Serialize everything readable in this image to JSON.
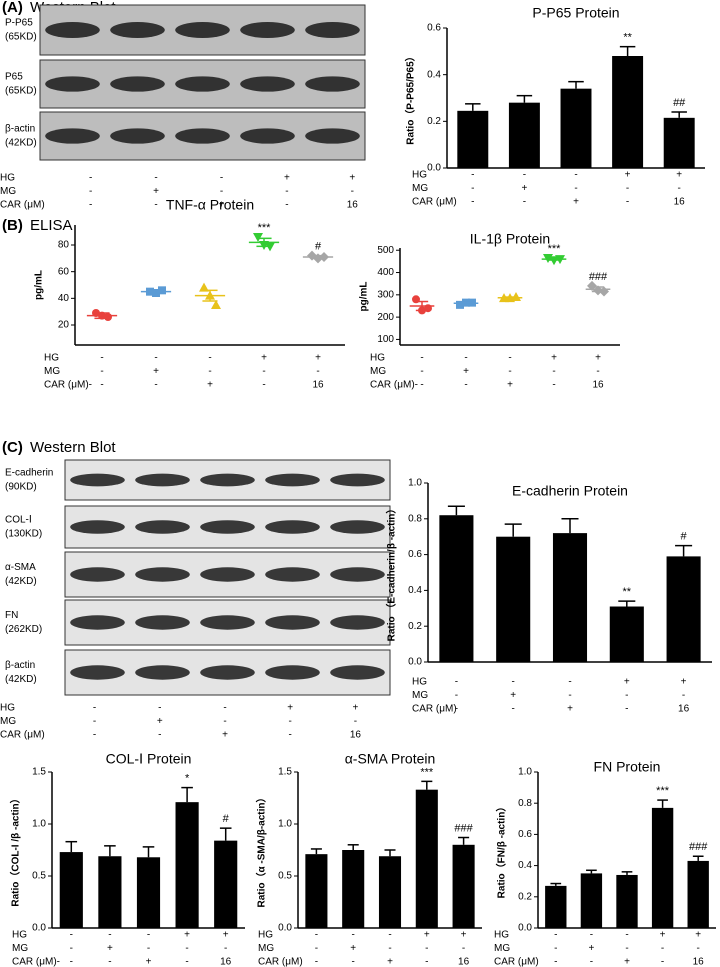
{
  "panels": [
    {
      "label": "(A)",
      "title": "Western Blot"
    },
    {
      "label": "(B)",
      "title": "ELISA"
    },
    {
      "label": "(C)",
      "title": "Western Blot"
    }
  ],
  "blots": [
    {
      "rows": [
        {
          "name": "P-P65",
          "size": "(65KD)"
        },
        {
          "name": "P65",
          "size": "(65KD)"
        },
        {
          "name": "β-actin",
          "size": "(42KD)"
        }
      ],
      "treatments": [
        {
          "name": "HG",
          "values": [
            "-",
            "-",
            "-",
            "+",
            "+"
          ]
        },
        {
          "name": "MG",
          "values": [
            "-",
            "+",
            "-",
            "-",
            "-"
          ]
        },
        {
          "name": "CAR (μM)",
          "values": [
            "-",
            "-",
            "+",
            "-",
            "16"
          ]
        }
      ]
    },
    {
      "rows": [
        {
          "name": "E-cadherin",
          "size": "(90KD)"
        },
        {
          "name": "COL-Ⅰ",
          "size": "(130KD)"
        },
        {
          "name": "α-SMA",
          "size": "(42KD)"
        },
        {
          "name": "FN",
          "size": "(262KD)"
        },
        {
          "name": "β-actin",
          "size": "(42KD)"
        }
      ],
      "treatments": [
        {
          "name": "HG",
          "values": [
            "-",
            "-",
            "-",
            "+",
            "+"
          ]
        },
        {
          "name": "MG",
          "values": [
            "-",
            "+",
            "-",
            "-",
            "-"
          ]
        },
        {
          "name": "CAR (μM)",
          "values": [
            "-",
            "-",
            "+",
            "-",
            "16"
          ]
        }
      ]
    }
  ],
  "chart_data": [
    {
      "type": "bar",
      "title": "P-P65 Protein",
      "ylabel": "Ratio（P-P65/P65）",
      "color": "#000000",
      "values": [
        0.245,
        0.28,
        0.34,
        0.48,
        0.215
      ],
      "errors": [
        0.03,
        0.03,
        0.03,
        0.04,
        0.025
      ],
      "significance": [
        null,
        null,
        null,
        "**",
        "##"
      ],
      "ylim": [
        0,
        0.6
      ],
      "yticks": [
        {
          "value": 0,
          "label": "0.0"
        },
        0.2,
        0.4,
        0.6
      ],
      "treatments": [
        {
          "name": "HG",
          "values": [
            "-",
            "-",
            "-",
            "+",
            "+"
          ]
        },
        {
          "name": "MG",
          "values": [
            "-",
            "+",
            "-",
            "-",
            "-"
          ]
        },
        {
          "name": "CAR (μM)",
          "values": [
            "-",
            "-",
            "+",
            "-",
            "16"
          ]
        }
      ]
    },
    {
      "type": "dot",
      "title": "TNF-α Protein",
      "ylabel": "pg/mL",
      "colors": [
        "#e8413c",
        "#5b9bd5",
        "#e8c21a",
        "#33cc33",
        "#a6a6a6"
      ],
      "markers": [
        "circle",
        "square",
        "triangle",
        "down",
        "diamond"
      ],
      "points": [
        [
          29,
          27,
          26
        ],
        [
          45,
          44,
          46
        ],
        [
          48,
          42,
          35
        ],
        [
          86,
          80,
          79
        ],
        [
          72,
          70,
          71
        ]
      ],
      "values": [
        27,
        45,
        42,
        82,
        71
      ],
      "errors": [
        2,
        1,
        4,
        3,
        1
      ],
      "significance": [
        null,
        null,
        null,
        "***",
        "#"
      ],
      "ylim": [
        5,
        95
      ],
      "yticks": [
        20,
        40,
        60,
        80
      ],
      "treatments": [
        {
          "name": "HG",
          "values": [
            "-",
            "-",
            "-",
            "+",
            "+"
          ]
        },
        {
          "name": "MG",
          "values": [
            "-",
            "+",
            "-",
            "-",
            "-"
          ]
        },
        {
          "name": "CAR (μM)-",
          "values": [
            "-",
            "-",
            "+",
            "-",
            "16"
          ]
        }
      ]
    },
    {
      "type": "dot",
      "title": "IL-1β Protein",
      "ylabel": "pg/mL",
      "colors": [
        "#e8413c",
        "#5b9bd5",
        "#e8c21a",
        "#33cc33",
        "#a6a6a6"
      ],
      "markers": [
        "circle",
        "square",
        "triangle",
        "down",
        "diamond"
      ],
      "points": [
        [
          280,
          230,
          240
        ],
        [
          255,
          265,
          265
        ],
        [
          285,
          285,
          290
        ],
        [
          465,
          455,
          460
        ],
        [
          340,
          320,
          315
        ]
      ],
      "values": [
        250,
        262,
        287,
        460,
        325
      ],
      "errors": [
        20,
        5,
        3,
        4,
        10
      ],
      "significance": [
        null,
        null,
        null,
        "***",
        "###"
      ],
      "ylim": [
        75,
        510
      ],
      "yticks": [
        100,
        200,
        300,
        400,
        500
      ],
      "treatments": [
        {
          "name": "HG",
          "values": [
            "-",
            "-",
            "-",
            "+",
            "+"
          ]
        },
        {
          "name": "MG",
          "values": [
            "-",
            "+",
            "-",
            "-",
            "-"
          ]
        },
        {
          "name": "CAR (μM)-",
          "values": [
            "-",
            "-",
            "+",
            "-",
            "16"
          ]
        }
      ]
    },
    {
      "type": "bar",
      "title": "E-cadherin Protein",
      "ylabel": "Ratio （E-cadherin/β -actin）",
      "color": "#000000",
      "values": [
        0.82,
        0.7,
        0.72,
        0.31,
        0.59
      ],
      "errors": [
        0.05,
        0.07,
        0.08,
        0.03,
        0.06
      ],
      "significance": [
        null,
        null,
        null,
        "**",
        "#"
      ],
      "ylim": [
        0,
        1
      ],
      "yticks": [
        {
          "value": 0,
          "label": "0.0"
        },
        0.2,
        0.4,
        0.6,
        0.8,
        {
          "value": 1,
          "label": "1.0"
        }
      ],
      "treatments": [
        {
          "name": "HG",
          "values": [
            "-",
            "-",
            "-",
            "+",
            "+"
          ]
        },
        {
          "name": "MG",
          "values": [
            "-",
            "+",
            "-",
            "-",
            "-"
          ]
        },
        {
          "name": "CAR (μM)",
          "values": [
            "-",
            "-",
            "+",
            "-",
            "16"
          ]
        }
      ]
    },
    {
      "type": "bar",
      "title": "COL-Ⅰ Protein",
      "ylabel": "Ratio（COL-I /β -actin）",
      "color": "#000000",
      "values": [
        0.73,
        0.69,
        0.68,
        1.21,
        0.84
      ],
      "errors": [
        0.1,
        0.1,
        0.1,
        0.14,
        0.12
      ],
      "significance": [
        null,
        null,
        null,
        "*",
        "#"
      ],
      "ylim": [
        0,
        1.5
      ],
      "yticks": [
        {
          "value": 0,
          "label": "0.0"
        },
        0.5,
        {
          "value": 1,
          "label": "1.0"
        },
        1.5
      ],
      "treatments": [
        {
          "name": "HG",
          "values": [
            "-",
            "-",
            "-",
            "+",
            "+"
          ]
        },
        {
          "name": "MG",
          "values": [
            "-",
            "+",
            "-",
            "-",
            "-"
          ]
        },
        {
          "name": "CAR (μM)-",
          "values": [
            "-",
            "-",
            "+",
            "-",
            "16"
          ]
        }
      ]
    },
    {
      "type": "bar",
      "title": "α-SMA Protein",
      "ylabel": "Ratio（α -SMA/β-actin）",
      "color": "#000000",
      "values": [
        0.71,
        0.75,
        0.69,
        1.33,
        0.8
      ],
      "errors": [
        0.05,
        0.05,
        0.06,
        0.08,
        0.07
      ],
      "significance": [
        null,
        null,
        null,
        "***",
        "###"
      ],
      "ylim": [
        0,
        1.5
      ],
      "yticks": [
        {
          "value": 0,
          "label": "0.0"
        },
        0.5,
        {
          "value": 1,
          "label": "1.0"
        },
        1.5
      ],
      "treatments": [
        {
          "name": "HG",
          "values": [
            "-",
            "-",
            "-",
            "+",
            "+"
          ]
        },
        {
          "name": "MG",
          "values": [
            "-",
            "+",
            "-",
            "-",
            "-"
          ]
        },
        {
          "name": "CAR (μM)",
          "values": [
            "-",
            "-",
            "+",
            "-",
            "16"
          ]
        }
      ]
    },
    {
      "type": "bar",
      "title": "FN Protein",
      "ylabel": "Ratio（FN/β -actin）",
      "color": "#000000",
      "values": [
        0.27,
        0.35,
        0.34,
        0.77,
        0.43
      ],
      "errors": [
        0.015,
        0.02,
        0.02,
        0.05,
        0.03
      ],
      "significance": [
        null,
        null,
        null,
        "***",
        "###"
      ],
      "ylim": [
        0,
        1
      ],
      "yticks": [
        {
          "value": 0,
          "label": "0.0"
        },
        0.2,
        0.4,
        0.6,
        0.8,
        {
          "value": 1,
          "label": "1.0"
        }
      ],
      "treatments": [
        {
          "name": "HG",
          "values": [
            "-",
            "-",
            "-",
            "+",
            "+"
          ]
        },
        {
          "name": "MG",
          "values": [
            "-",
            "+",
            "-",
            "-",
            "-"
          ]
        },
        {
          "name": "CAR (μM)",
          "values": [
            "-",
            "-",
            "+",
            "-",
            "16"
          ]
        }
      ]
    }
  ]
}
